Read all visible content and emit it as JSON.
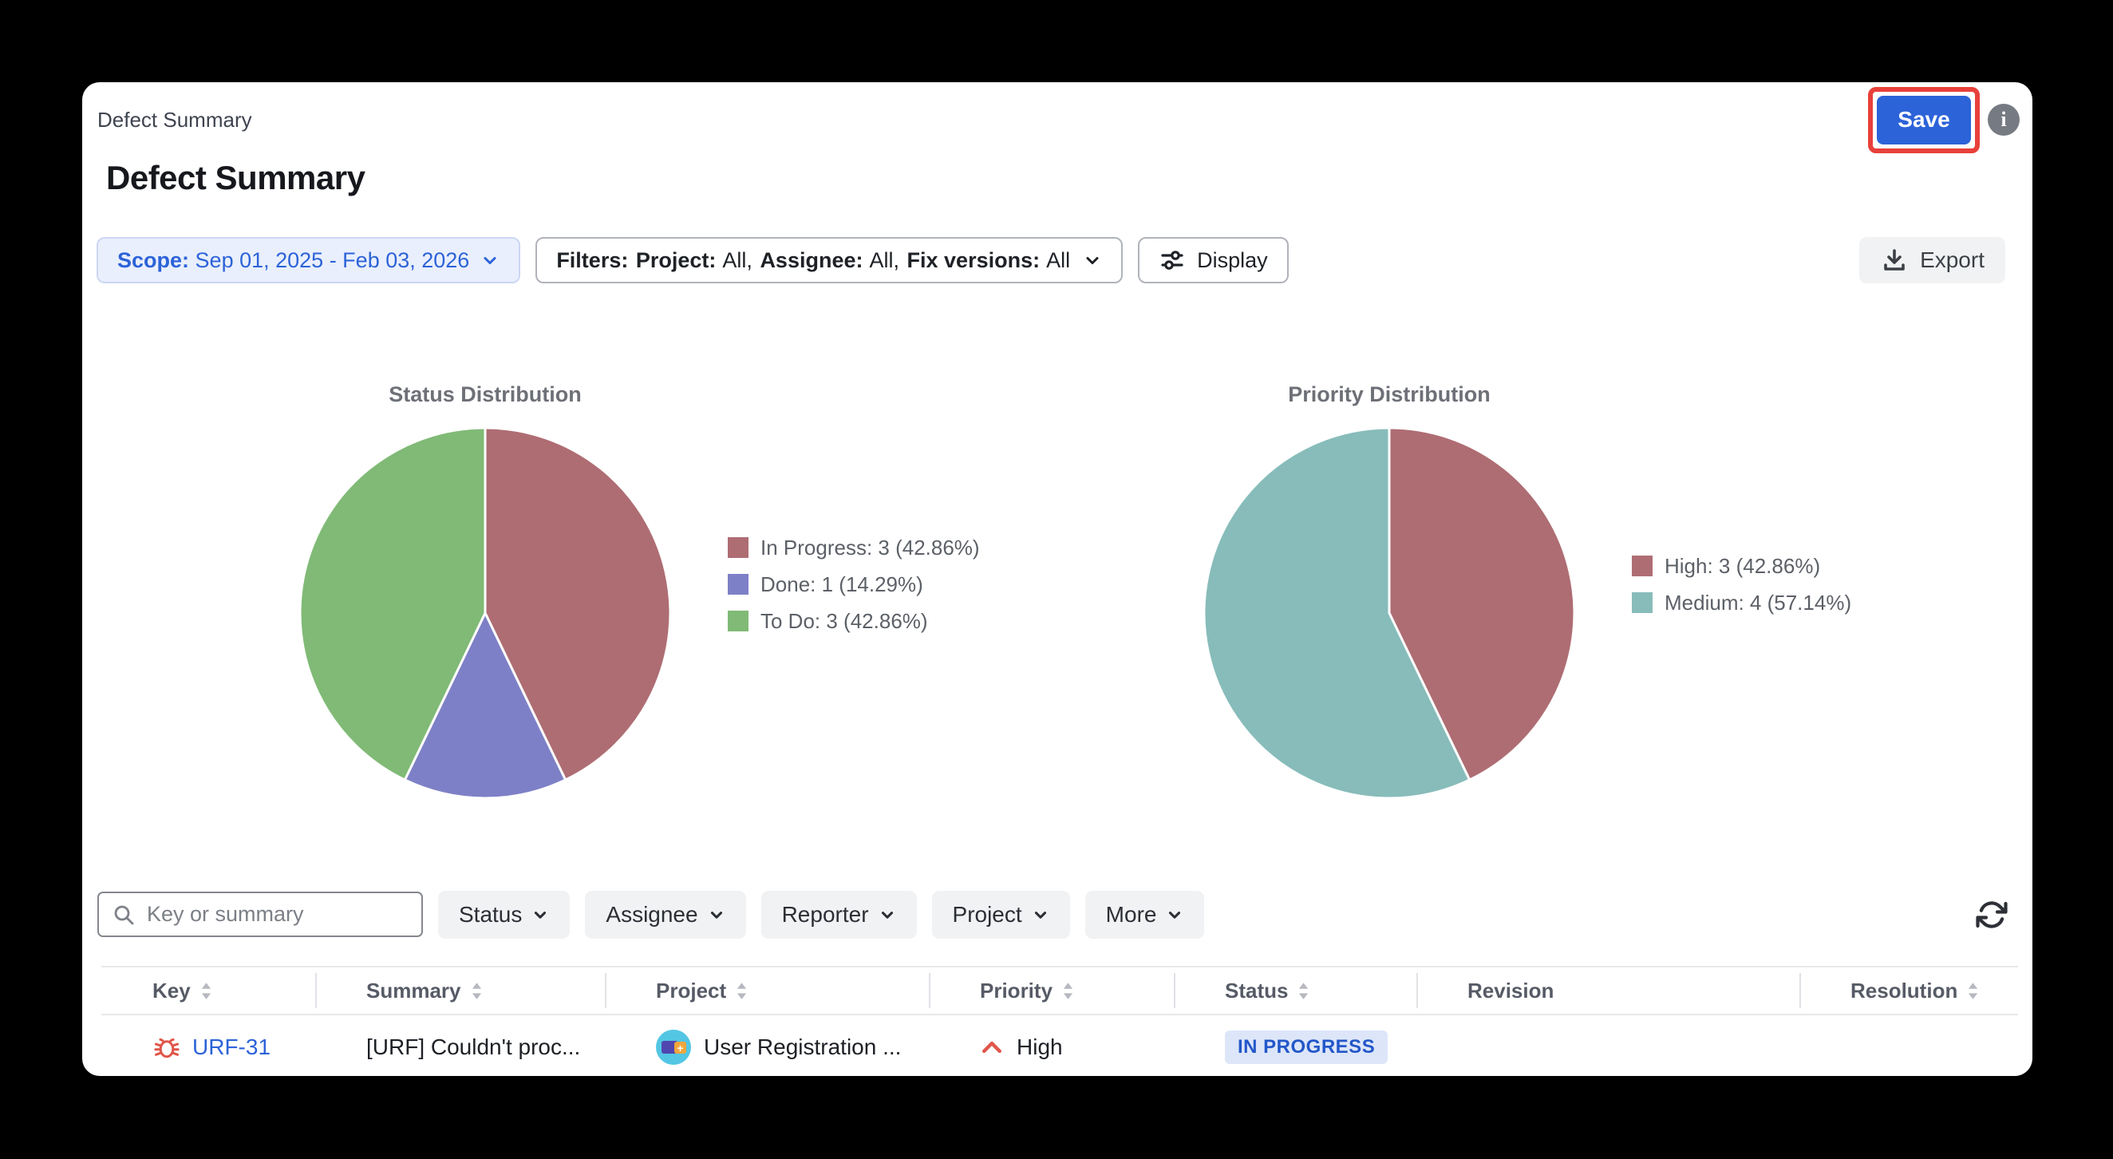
{
  "panel": {
    "title": "Defect Summary",
    "heading": "Defect Summary",
    "save_label": "Save"
  },
  "toolbar": {
    "scope": {
      "label": "Scope:",
      "value": "Sep 01, 2025 - Feb 03, 2026"
    },
    "filters": {
      "label": "Filters:",
      "segments": [
        {
          "label": "Project:",
          "value": "All,"
        },
        {
          "label": "Assignee:",
          "value": "All,"
        },
        {
          "label": "Fix versions:",
          "value": "All"
        }
      ]
    },
    "display_label": "Display",
    "export_label": "Export"
  },
  "chart_data": [
    {
      "type": "pie",
      "title": "Status Distribution",
      "legend_position": "right",
      "start_angle_deg": -90,
      "direction": "clockwise",
      "series": [
        {
          "label": "In Progress",
          "value": 3,
          "pct": 42.86,
          "color": "#ae6d73"
        },
        {
          "label": "Done",
          "value": 1,
          "pct": 14.29,
          "color": "#7e80c7"
        },
        {
          "label": "To Do",
          "value": 3,
          "pct": 42.86,
          "color": "#80ba76"
        }
      ]
    },
    {
      "type": "pie",
      "title": "Priority Distribution",
      "legend_position": "right",
      "start_angle_deg": -90,
      "direction": "clockwise",
      "series": [
        {
          "label": "High",
          "value": 3,
          "pct": 42.86,
          "color": "#ae6d73"
        },
        {
          "label": "Medium",
          "value": 4,
          "pct": 57.14,
          "color": "#87bcba"
        }
      ]
    }
  ],
  "filter_bar": {
    "search_placeholder": "Key or summary",
    "buttons": [
      "Status",
      "Assignee",
      "Reporter",
      "Project",
      "More"
    ]
  },
  "table": {
    "columns": [
      {
        "label": "Key",
        "sortable": true
      },
      {
        "label": "Summary",
        "sortable": true
      },
      {
        "label": "Project",
        "sortable": true
      },
      {
        "label": "Priority",
        "sortable": true
      },
      {
        "label": "Status",
        "sortable": true
      },
      {
        "label": "Revision",
        "sortable": false
      },
      {
        "label": "Resolution",
        "sortable": true
      }
    ],
    "rows": [
      {
        "key": "URF-31",
        "summary": "[URF] Couldn't proc...",
        "project": "User Registration ...",
        "priority": "High",
        "status": "IN PROGRESS",
        "revision": "",
        "resolution": ""
      }
    ]
  }
}
